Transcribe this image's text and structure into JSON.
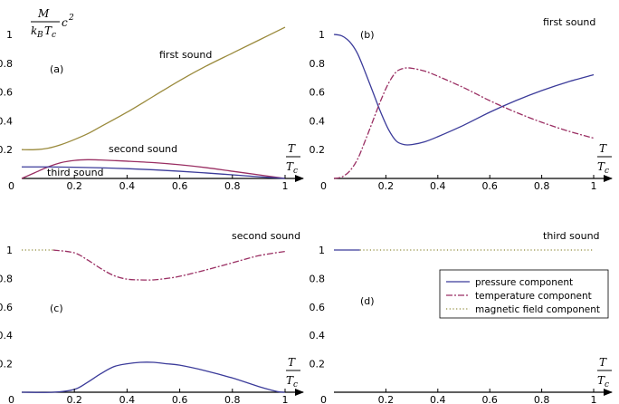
{
  "colors": {
    "pressure": "#3b3b9a",
    "temperature": "#9a2f63",
    "magnetic": "#8f8a3a",
    "first_sound_a": "#9a8a3c",
    "axis": "#000000"
  },
  "axis_label": {
    "y_frac_top": "M",
    "y_frac_bottom_main": "k",
    "y_frac_bottom_sub1": "B",
    "y_frac_bottom_T": "T",
    "y_frac_bottom_sub2": "c",
    "y_suffix": "c",
    "y_suffix_sup": "2",
    "x_top": "T",
    "x_bottom": "T",
    "x_bottom_sub": "c"
  },
  "legend": {
    "pressure": "pressure component",
    "temperature": "temperature component",
    "magnetic": "magnetic field component"
  },
  "chart_data": [
    {
      "type": "line",
      "panel": "(a)",
      "xlim": [
        0,
        1
      ],
      "ylim": [
        0,
        1.05
      ],
      "xticks": [
        "0.2",
        "0.4",
        "0.6",
        "0.8",
        "1"
      ],
      "yticks": [
        "0.2",
        "0.4",
        "0.6",
        "0.8",
        "1"
      ],
      "origin_label": "0",
      "annotations": [
        "first sound",
        "second sound",
        "third sound"
      ],
      "series": [
        {
          "key": "first",
          "x": [
            0,
            0.05,
            0.1,
            0.15,
            0.2,
            0.25,
            0.3,
            0.4,
            0.5,
            0.6,
            0.7,
            0.8,
            0.9,
            1.0
          ],
          "y": [
            0.2,
            0.2,
            0.21,
            0.235,
            0.27,
            0.31,
            0.36,
            0.46,
            0.57,
            0.68,
            0.78,
            0.87,
            0.96,
            1.05
          ]
        },
        {
          "key": "second",
          "x": [
            0,
            0.05,
            0.1,
            0.15,
            0.2,
            0.25,
            0.3,
            0.4,
            0.5,
            0.6,
            0.7,
            0.8,
            0.9,
            1.0
          ],
          "y": [
            0.0,
            0.04,
            0.08,
            0.11,
            0.125,
            0.13,
            0.128,
            0.12,
            0.11,
            0.095,
            0.075,
            0.05,
            0.025,
            0.0
          ]
        },
        {
          "key": "third",
          "x": [
            0,
            0.1,
            0.2,
            0.3,
            0.4,
            0.5,
            0.6,
            0.7,
            0.8,
            0.9,
            1.0
          ],
          "y": [
            0.08,
            0.08,
            0.078,
            0.074,
            0.068,
            0.06,
            0.05,
            0.038,
            0.025,
            0.012,
            0.0
          ]
        }
      ]
    },
    {
      "type": "line",
      "panel": "(b)",
      "xlim": [
        0,
        1
      ],
      "ylim": [
        0,
        1.05
      ],
      "xticks": [
        "0.2",
        "0.4",
        "0.6",
        "0.8",
        "1"
      ],
      "yticks": [
        "0.2",
        "0.4",
        "0.6",
        "0.8",
        "1"
      ],
      "origin_label": "0",
      "annotations": [
        "first sound"
      ],
      "series": [
        {
          "key": "pressure",
          "x": [
            0,
            0.03,
            0.06,
            0.09,
            0.12,
            0.15,
            0.18,
            0.21,
            0.24,
            0.27,
            0.3,
            0.35,
            0.4,
            0.5,
            0.6,
            0.7,
            0.8,
            0.9,
            1.0
          ],
          "y": [
            1.0,
            0.99,
            0.95,
            0.87,
            0.74,
            0.6,
            0.46,
            0.34,
            0.26,
            0.235,
            0.235,
            0.255,
            0.29,
            0.37,
            0.46,
            0.54,
            0.61,
            0.67,
            0.72
          ]
        },
        {
          "key": "temperature",
          "x": [
            0,
            0.03,
            0.06,
            0.09,
            0.12,
            0.15,
            0.18,
            0.21,
            0.24,
            0.27,
            0.3,
            0.35,
            0.4,
            0.5,
            0.6,
            0.7,
            0.8,
            0.9,
            1.0
          ],
          "y": [
            0.0,
            0.01,
            0.05,
            0.13,
            0.26,
            0.4,
            0.54,
            0.66,
            0.74,
            0.765,
            0.765,
            0.745,
            0.71,
            0.63,
            0.54,
            0.46,
            0.39,
            0.33,
            0.28
          ]
        }
      ]
    },
    {
      "type": "line",
      "panel": "(c)",
      "xlim": [
        0,
        1
      ],
      "ylim": [
        0,
        1.05
      ],
      "xticks": [
        "0.2",
        "0.4",
        "0.6",
        "0.8",
        "1"
      ],
      "yticks": [
        "0.2",
        "0.4",
        "0.6",
        "0.8",
        "1"
      ],
      "origin_label": "0",
      "annotations": [
        "second sound"
      ],
      "series": [
        {
          "key": "magnetic",
          "x": [
            0,
            0.12
          ],
          "y": [
            1.0,
            1.0
          ]
        },
        {
          "key": "temperature",
          "x": [
            0.12,
            0.2,
            0.25,
            0.3,
            0.35,
            0.4,
            0.45,
            0.5,
            0.55,
            0.6,
            0.7,
            0.8,
            0.9,
            1.0
          ],
          "y": [
            1.0,
            0.98,
            0.93,
            0.87,
            0.82,
            0.795,
            0.79,
            0.79,
            0.8,
            0.815,
            0.86,
            0.91,
            0.96,
            0.99
          ]
        },
        {
          "key": "pressure",
          "x": [
            0,
            0.12,
            0.2,
            0.25,
            0.3,
            0.35,
            0.4,
            0.45,
            0.5,
            0.55,
            0.6,
            0.7,
            0.8,
            0.9,
            0.97,
            1.0
          ],
          "y": [
            0.0,
            0.0,
            0.02,
            0.07,
            0.13,
            0.18,
            0.2,
            0.21,
            0.21,
            0.2,
            0.19,
            0.15,
            0.1,
            0.04,
            0.005,
            0.0
          ]
        }
      ]
    },
    {
      "type": "line",
      "panel": "(d)",
      "xlim": [
        0,
        1
      ],
      "ylim": [
        0,
        1.05
      ],
      "xticks": [
        "0.2",
        "0.4",
        "0.6",
        "0.8",
        "1"
      ],
      "yticks": [
        "0.2",
        "0.4",
        "0.6",
        "0.8",
        "1"
      ],
      "origin_label": "0",
      "annotations": [
        "third sound"
      ],
      "series": [
        {
          "key": "pressure",
          "x": [
            0,
            0.1
          ],
          "y": [
            1.0,
            1.0
          ]
        },
        {
          "key": "magnetic",
          "x": [
            0.1,
            1.0
          ],
          "y": [
            1.0,
            1.0
          ]
        }
      ]
    }
  ]
}
